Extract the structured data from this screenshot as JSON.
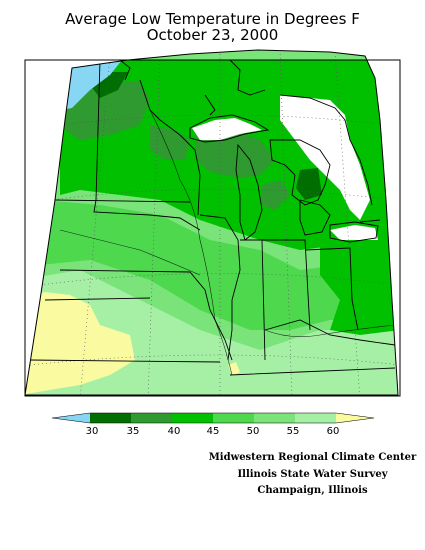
{
  "title": {
    "line1": "Average Low Temperature in Degrees F",
    "line2": "October 23, 2000"
  },
  "legend": {
    "labels": [
      "30",
      "35",
      "40",
      "45",
      "50",
      "55",
      "60"
    ],
    "colors": [
      "#87d6f4",
      "#006e00",
      "#2f9a2f",
      "#00c000",
      "#4ed84e",
      "#7ae47a",
      "#a6f0a6",
      "#fafaa0"
    ]
  },
  "credits": {
    "line1": "Midwestern Regional Climate Center",
    "line2": "Illinois State Water Survey",
    "line3": "Champaign, Illinois"
  }
}
